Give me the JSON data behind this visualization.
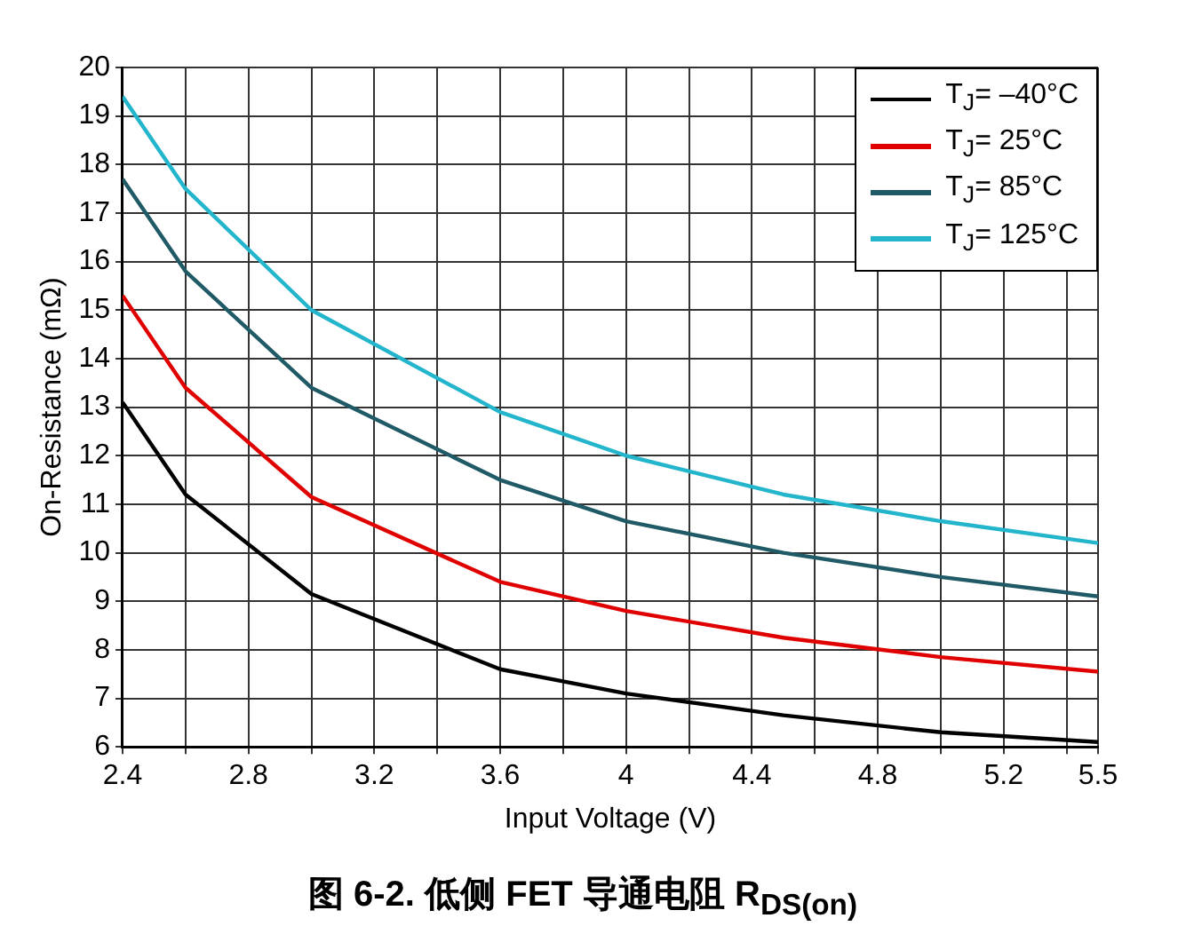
{
  "chart_data": {
    "type": "line",
    "title": "图 6-2. 低侧 FET 导通电阻 R$_{DS(on)}$",
    "xlabel": "Input Voltage (V)",
    "ylabel": "On-Resistance (mΩ)",
    "x": [
      2.4,
      2.6,
      3.0,
      3.6,
      4.0,
      4.5,
      5.0,
      5.5
    ],
    "series": [
      {
        "name": "T$_{J}$= –40°C",
        "color": "#000000",
        "values": [
          13.1,
          11.2,
          9.15,
          7.6,
          7.1,
          6.65,
          6.3,
          6.1
        ]
      },
      {
        "name": "T$_{J}$= 25°C",
        "color": "#e00000",
        "values": [
          15.3,
          13.4,
          11.15,
          9.4,
          8.8,
          8.25,
          7.85,
          7.55
        ]
      },
      {
        "name": "T$_{J}$= 85°C",
        "color": "#1f5a66",
        "values": [
          17.7,
          15.8,
          13.4,
          11.5,
          10.65,
          10.0,
          9.5,
          9.1
        ]
      },
      {
        "name": "T$_{J}$= 125°C",
        "color": "#22b5cc",
        "values": [
          19.4,
          17.5,
          15.0,
          12.9,
          12.0,
          11.2,
          10.65,
          10.2
        ]
      }
    ],
    "xlim": [
      2.4,
      5.5
    ],
    "xticks": [
      2.4,
      {
        "value": 2.6,
        "label": null
      },
      2.8,
      {
        "value": 3.0,
        "label": null
      },
      3.2,
      {
        "value": 3.4,
        "label": null
      },
      3.6,
      {
        "value": 3.8,
        "label": null
      },
      4.0,
      {
        "value": 4.2,
        "label": null
      },
      4.4,
      {
        "value": 4.6,
        "label": null
      },
      4.8,
      {
        "value": 5.0,
        "label": null
      },
      5.2,
      {
        "value": 5.4,
        "label": null
      },
      5.5
    ],
    "ylim": [
      6,
      20
    ],
    "yticks": [
      6,
      7,
      8,
      9,
      10,
      11,
      12,
      13,
      14,
      15,
      16,
      17,
      18,
      19,
      20
    ],
    "grid": true,
    "legend": "top right",
    "marker": "none",
    "line_style": "solid"
  }
}
